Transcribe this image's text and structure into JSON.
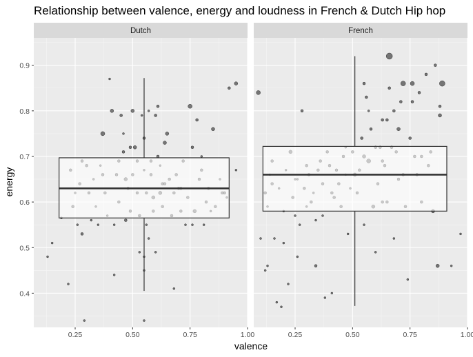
{
  "chart_data": {
    "type": "scatter",
    "title": "Relationship between valence, energy and loudness in French & Dutch Hip hop",
    "xlabel": "valence",
    "ylabel": "energy",
    "xlim": [
      0.07,
      1.0
    ],
    "ylim": [
      0.325,
      0.96
    ],
    "x_ticks": [
      0.25,
      0.5,
      0.75,
      1.0
    ],
    "x_tick_labels": [
      "0.25",
      "0.50",
      "0.75",
      "1.00"
    ],
    "y_ticks": [
      0.4,
      0.5,
      0.6,
      0.7,
      0.8,
      0.9
    ],
    "y_tick_labels": [
      "0.4",
      "0.5",
      "0.6",
      "0.7",
      "0.8",
      "0.9"
    ],
    "grid": true,
    "point_color": "#000000",
    "point_opacity": 0.5,
    "panel_background": "#ebebeb",
    "strip_background": "#d9d9d9",
    "box_fill": "#ffffff",
    "box_fill_opacity": 0.6,
    "panels": [
      {
        "label": "Dutch",
        "boxplot": {
          "x_left": 0.18,
          "x_right": 0.92,
          "x_center": 0.55,
          "q1": 0.565,
          "median": 0.63,
          "q3": 0.697,
          "whisker_low": 0.405,
          "whisker_high": 0.872
        },
        "points": [
          [
            0.13,
            0.48,
            1.5
          ],
          [
            0.15,
            0.51,
            1.5
          ],
          [
            0.19,
            0.565,
            1.5
          ],
          [
            0.22,
            0.42,
            1.5
          ],
          [
            0.24,
            0.59,
            2
          ],
          [
            0.23,
            0.67,
            2
          ],
          [
            0.27,
            0.64,
            2
          ],
          [
            0.25,
            0.62,
            1.5
          ],
          [
            0.26,
            0.55,
            1.5
          ],
          [
            0.28,
            0.53,
            2
          ],
          [
            0.29,
            0.34,
            1.5
          ],
          [
            0.28,
            0.69,
            2
          ],
          [
            0.3,
            0.68,
            2
          ],
          [
            0.31,
            0.62,
            2
          ],
          [
            0.32,
            0.56,
            1.5
          ],
          [
            0.33,
            0.65,
            1.5
          ],
          [
            0.34,
            0.59,
            1.5
          ],
          [
            0.35,
            0.55,
            1.5
          ],
          [
            0.36,
            0.68,
            1.5
          ],
          [
            0.37,
            0.75,
            3
          ],
          [
            0.37,
            0.66,
            2
          ],
          [
            0.38,
            0.62,
            2
          ],
          [
            0.39,
            0.57,
            1.5
          ],
          [
            0.4,
            0.87,
            1.5
          ],
          [
            0.41,
            0.8,
            2.5
          ],
          [
            0.42,
            0.44,
            1.5
          ],
          [
            0.42,
            0.55,
            1.5
          ],
          [
            0.43,
            0.66,
            2
          ],
          [
            0.44,
            0.6,
            2
          ],
          [
            0.45,
            0.79,
            2
          ],
          [
            0.46,
            0.75,
            1.5
          ],
          [
            0.46,
            0.71,
            2
          ],
          [
            0.47,
            0.65,
            2.5
          ],
          [
            0.47,
            0.56,
            2
          ],
          [
            0.48,
            0.63,
            2
          ],
          [
            0.49,
            0.58,
            2
          ],
          [
            0.5,
            0.66,
            2
          ],
          [
            0.5,
            0.8,
            2.5
          ],
          [
            0.51,
            0.72,
            2.5
          ],
          [
            0.52,
            0.62,
            2
          ],
          [
            0.53,
            0.57,
            2
          ],
          [
            0.53,
            0.49,
            1.5
          ],
          [
            0.54,
            0.79,
            1.5
          ],
          [
            0.55,
            0.74,
            2
          ],
          [
            0.55,
            0.67,
            1.5
          ],
          [
            0.56,
            0.62,
            2
          ],
          [
            0.56,
            0.55,
            1.5
          ],
          [
            0.57,
            0.8,
            1.5
          ],
          [
            0.58,
            0.69,
            2
          ],
          [
            0.58,
            0.66,
            2
          ],
          [
            0.59,
            0.58,
            2
          ],
          [
            0.6,
            0.79,
            2
          ],
          [
            0.61,
            0.81,
            2
          ],
          [
            0.61,
            0.7,
            2
          ],
          [
            0.62,
            0.68,
            1.5
          ],
          [
            0.62,
            0.62,
            2.5
          ],
          [
            0.63,
            0.59,
            2
          ],
          [
            0.64,
            0.73,
            2.5
          ],
          [
            0.64,
            0.64,
            2
          ],
          [
            0.65,
            0.75,
            2.5
          ],
          [
            0.66,
            0.65,
            2
          ],
          [
            0.67,
            0.57,
            2
          ],
          [
            0.68,
            0.62,
            2
          ],
          [
            0.68,
            0.41,
            1.5
          ],
          [
            0.69,
            0.66,
            2
          ],
          [
            0.7,
            0.63,
            2
          ],
          [
            0.71,
            0.58,
            2
          ],
          [
            0.72,
            0.69,
            2
          ],
          [
            0.73,
            0.55,
            1.5
          ],
          [
            0.74,
            0.61,
            2
          ],
          [
            0.75,
            0.81,
            3
          ],
          [
            0.76,
            0.72,
            2
          ],
          [
            0.77,
            0.58,
            2.5
          ],
          [
            0.78,
            0.78,
            2
          ],
          [
            0.79,
            0.65,
            2
          ],
          [
            0.8,
            0.7,
            1.5
          ],
          [
            0.81,
            0.55,
            1.5
          ],
          [
            0.82,
            0.6,
            2
          ],
          [
            0.83,
            0.63,
            2
          ],
          [
            0.84,
            0.58,
            1.5
          ],
          [
            0.85,
            0.76,
            2.5
          ],
          [
            0.86,
            0.59,
            2
          ],
          [
            0.88,
            0.65,
            1.5
          ],
          [
            0.89,
            0.62,
            2
          ],
          [
            0.9,
            0.62,
            2
          ],
          [
            0.91,
            0.61,
            1.5
          ],
          [
            0.92,
            0.85,
            2
          ],
          [
            0.95,
            0.86,
            2.5
          ],
          [
            0.95,
            0.67,
            1.5
          ],
          [
            0.55,
            0.34,
            1.5
          ],
          [
            0.55,
            0.48,
            1.5
          ],
          [
            0.55,
            0.45,
            1.5
          ],
          [
            0.49,
            0.72,
            2
          ],
          [
            0.52,
            0.69,
            2
          ],
          [
            0.44,
            0.69,
            2
          ],
          [
            0.59,
            0.61,
            2.5
          ],
          [
            0.71,
            0.63,
            2
          ],
          [
            0.8,
            0.67,
            2
          ],
          [
            0.63,
            0.64,
            2
          ],
          [
            0.57,
            0.52,
            1.5
          ],
          [
            0.6,
            0.49,
            1.5
          ],
          [
            0.76,
            0.55,
            1.5
          ]
        ]
      },
      {
        "label": "French",
        "boxplot": {
          "x_left": 0.11,
          "x_right": 0.91,
          "x_center": 0.51,
          "q1": 0.58,
          "median": 0.66,
          "q3": 0.722,
          "whisker_low": 0.372,
          "whisker_high": 0.92
        },
        "points": [
          [
            0.09,
            0.84,
            3
          ],
          [
            0.1,
            0.52,
            1.5
          ],
          [
            0.12,
            0.62,
            2
          ],
          [
            0.12,
            0.45,
            1.5
          ],
          [
            0.13,
            0.46,
            1.5
          ],
          [
            0.13,
            0.59,
            1.5
          ],
          [
            0.14,
            0.66,
            1.5
          ],
          [
            0.15,
            0.64,
            2
          ],
          [
            0.16,
            0.52,
            1.5
          ],
          [
            0.17,
            0.38,
            1.5
          ],
          [
            0.18,
            0.63,
            1.5
          ],
          [
            0.19,
            0.37,
            1.5
          ],
          [
            0.2,
            0.58,
            1.5
          ],
          [
            0.2,
            0.51,
            1.5
          ],
          [
            0.21,
            0.67,
            1.5
          ],
          [
            0.22,
            0.42,
            1.5
          ],
          [
            0.23,
            0.71,
            2.5
          ],
          [
            0.24,
            0.61,
            2
          ],
          [
            0.25,
            0.57,
            1.5
          ],
          [
            0.26,
            0.65,
            1.5
          ],
          [
            0.27,
            0.55,
            1.5
          ],
          [
            0.28,
            0.8,
            2
          ],
          [
            0.29,
            0.63,
            2
          ],
          [
            0.3,
            0.68,
            2
          ],
          [
            0.3,
            0.59,
            1.5
          ],
          [
            0.31,
            0.66,
            2
          ],
          [
            0.32,
            0.6,
            2
          ],
          [
            0.33,
            0.62,
            1.5
          ],
          [
            0.34,
            0.46,
            2
          ],
          [
            0.35,
            0.67,
            2
          ],
          [
            0.36,
            0.69,
            2
          ],
          [
            0.37,
            0.64,
            2
          ],
          [
            0.37,
            0.57,
            1.5
          ],
          [
            0.38,
            0.39,
            1.5
          ],
          [
            0.39,
            0.71,
            2
          ],
          [
            0.4,
            0.68,
            2
          ],
          [
            0.41,
            0.62,
            2
          ],
          [
            0.42,
            0.61,
            2
          ],
          [
            0.43,
            0.67,
            2
          ],
          [
            0.44,
            0.64,
            2
          ],
          [
            0.45,
            0.59,
            2
          ],
          [
            0.46,
            0.7,
            2
          ],
          [
            0.47,
            0.66,
            1.5
          ],
          [
            0.48,
            0.53,
            1.5
          ],
          [
            0.49,
            0.63,
            1.5
          ],
          [
            0.5,
            0.71,
            2
          ],
          [
            0.51,
            0.66,
            2.5
          ],
          [
            0.52,
            0.62,
            2
          ],
          [
            0.53,
            0.67,
            2
          ],
          [
            0.54,
            0.74,
            2
          ],
          [
            0.55,
            0.7,
            2.5
          ],
          [
            0.55,
            0.86,
            2
          ],
          [
            0.56,
            0.83,
            2
          ],
          [
            0.57,
            0.69,
            3
          ],
          [
            0.58,
            0.76,
            2
          ],
          [
            0.59,
            0.59,
            2.5
          ],
          [
            0.6,
            0.72,
            2
          ],
          [
            0.6,
            0.49,
            1.5
          ],
          [
            0.61,
            0.64,
            2
          ],
          [
            0.62,
            0.72,
            2
          ],
          [
            0.63,
            0.78,
            2
          ],
          [
            0.63,
            0.6,
            2
          ],
          [
            0.64,
            0.68,
            2
          ],
          [
            0.65,
            0.6,
            2
          ],
          [
            0.66,
            0.92,
            4.5
          ],
          [
            0.66,
            0.85,
            2
          ],
          [
            0.67,
            0.72,
            2
          ],
          [
            0.68,
            0.8,
            2
          ],
          [
            0.68,
            0.52,
            1.5
          ],
          [
            0.69,
            0.71,
            2
          ],
          [
            0.7,
            0.76,
            2.5
          ],
          [
            0.7,
            0.65,
            2
          ],
          [
            0.71,
            0.82,
            2
          ],
          [
            0.72,
            0.66,
            2
          ],
          [
            0.72,
            0.86,
            3.5
          ],
          [
            0.73,
            0.59,
            2
          ],
          [
            0.74,
            0.43,
            1.5
          ],
          [
            0.75,
            0.74,
            2
          ],
          [
            0.76,
            0.82,
            2
          ],
          [
            0.76,
            0.86,
            3
          ],
          [
            0.77,
            0.7,
            2
          ],
          [
            0.78,
            0.66,
            2
          ],
          [
            0.79,
            0.84,
            2
          ],
          [
            0.8,
            0.7,
            2
          ],
          [
            0.8,
            0.6,
            2
          ],
          [
            0.82,
            0.88,
            2
          ],
          [
            0.83,
            0.68,
            2
          ],
          [
            0.84,
            0.71,
            2
          ],
          [
            0.85,
            0.58,
            2.5
          ],
          [
            0.86,
            0.9,
            2
          ],
          [
            0.87,
            0.46,
            2.5
          ],
          [
            0.88,
            0.79,
            2.5
          ],
          [
            0.88,
            0.81,
            2
          ],
          [
            0.89,
            0.86,
            4
          ],
          [
            0.93,
            0.46,
            1.5
          ],
          [
            0.97,
            0.53,
            1.5
          ],
          [
            0.15,
            0.69,
            2
          ],
          [
            0.25,
            0.65,
            1.5
          ],
          [
            0.41,
            0.4,
            1.5
          ],
          [
            0.55,
            0.55,
            1.5
          ],
          [
            0.47,
            0.72,
            1.5
          ],
          [
            0.63,
            0.69,
            2
          ],
          [
            0.57,
            0.8,
            1.5
          ],
          [
            0.65,
            0.78,
            2
          ],
          [
            0.34,
            0.56,
            1.5
          ],
          [
            0.26,
            0.48,
            1.5
          ]
        ]
      }
    ]
  }
}
